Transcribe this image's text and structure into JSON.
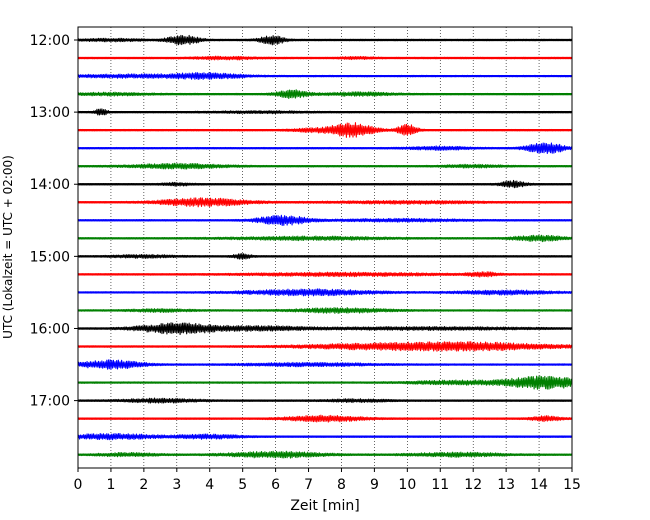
{
  "chart_data": {
    "type": "line",
    "title": "",
    "xlabel": "Zeit  [min]",
    "ylabel": "UTC (Lokalzeit = UTC + 02:00)",
    "xlim": [
      0,
      15
    ],
    "x_ticks": [
      "0",
      "1",
      "2",
      "3",
      "4",
      "5",
      "6",
      "7",
      "8",
      "9",
      "10",
      "11",
      "12",
      "13",
      "14",
      "15"
    ],
    "y_ticks": [
      "12:00",
      "13:00",
      "14:00",
      "15:00",
      "16:00",
      "17:00"
    ],
    "grid": {
      "x": true,
      "y": false,
      "style": "dotted"
    },
    "legend": "none",
    "trace_interval_minutes": 15,
    "trace_colors": [
      "#000000",
      "#ff0000",
      "#0000ff",
      "#008000"
    ],
    "series": [
      {
        "start": "12:00",
        "bursts": [
          [
            3.2,
            0.5,
            1.4
          ],
          [
            5.9,
            0.4,
            1.3
          ],
          [
            1.0,
            1.0,
            0.4
          ]
        ]
      },
      {
        "start": "12:15",
        "bursts": [
          [
            4.5,
            1.0,
            0.4
          ],
          [
            8.5,
            0.6,
            0.3
          ]
        ]
      },
      {
        "start": "12:30",
        "bursts": [
          [
            2.0,
            2.5,
            0.5
          ],
          [
            4.0,
            1.0,
            0.6
          ]
        ]
      },
      {
        "start": "12:45",
        "bursts": [
          [
            6.5,
            0.5,
            1.2
          ],
          [
            8.5,
            1.2,
            0.5
          ],
          [
            1.0,
            1.2,
            0.4
          ]
        ]
      },
      {
        "start": "13:00",
        "bursts": [
          [
            0.7,
            0.2,
            1.0
          ],
          [
            5.5,
            1.5,
            0.3
          ]
        ]
      },
      {
        "start": "13:15",
        "bursts": [
          [
            8.3,
            0.7,
            2.2
          ],
          [
            10.0,
            0.3,
            1.8
          ],
          [
            7.0,
            0.6,
            0.5
          ]
        ]
      },
      {
        "start": "13:30",
        "bursts": [
          [
            14.2,
            0.6,
            1.6
          ],
          [
            11.0,
            1.0,
            0.5
          ]
        ]
      },
      {
        "start": "13:45",
        "bursts": [
          [
            3.0,
            1.5,
            0.7
          ],
          [
            12.0,
            1.0,
            0.4
          ]
        ]
      },
      {
        "start": "14:00",
        "bursts": [
          [
            13.2,
            0.4,
            1.0
          ],
          [
            3.0,
            0.5,
            0.4
          ]
        ]
      },
      {
        "start": "14:15",
        "bursts": [
          [
            3.8,
            1.4,
            1.2
          ],
          [
            10.0,
            2.5,
            0.4
          ]
        ]
      },
      {
        "start": "14:30",
        "bursts": [
          [
            6.2,
            0.8,
            1.4
          ],
          [
            9.8,
            2.0,
            0.4
          ]
        ]
      },
      {
        "start": "14:45",
        "bursts": [
          [
            14.0,
            0.8,
            0.9
          ],
          [
            7.0,
            2.5,
            0.5
          ]
        ]
      },
      {
        "start": "15:00",
        "bursts": [
          [
            5.0,
            0.3,
            0.8
          ],
          [
            2.0,
            1.0,
            0.4
          ]
        ]
      },
      {
        "start": "15:15",
        "bursts": [
          [
            8.0,
            3.0,
            0.5
          ],
          [
            12.3,
            0.5,
            0.6
          ]
        ]
      },
      {
        "start": "15:30",
        "bursts": [
          [
            7.0,
            2.0,
            0.9
          ],
          [
            13.0,
            1.5,
            0.6
          ]
        ]
      },
      {
        "start": "15:45",
        "bursts": [
          [
            8.0,
            1.5,
            0.7
          ],
          [
            2.5,
            1.0,
            0.4
          ]
        ]
      },
      {
        "start": "16:00",
        "bursts": [
          [
            3.0,
            1.2,
            1.6
          ],
          [
            5.5,
            1.5,
            0.6
          ],
          [
            10.5,
            3.5,
            0.4
          ]
        ]
      },
      {
        "start": "16:15",
        "bursts": [
          [
            11.5,
            3.0,
            1.3
          ],
          [
            8.0,
            2.0,
            0.4
          ]
        ]
      },
      {
        "start": "16:30",
        "bursts": [
          [
            1.0,
            1.0,
            1.3
          ],
          [
            7.0,
            2.0,
            0.5
          ]
        ]
      },
      {
        "start": "16:45",
        "bursts": [
          [
            14.2,
            1.2,
            1.9
          ],
          [
            11.5,
            1.5,
            0.6
          ]
        ]
      },
      {
        "start": "17:00",
        "bursts": [
          [
            2.5,
            1.2,
            0.6
          ],
          [
            8.5,
            1.0,
            0.4
          ]
        ]
      },
      {
        "start": "17:15",
        "bursts": [
          [
            7.5,
            1.2,
            0.9
          ],
          [
            14.2,
            0.5,
            0.7
          ]
        ]
      },
      {
        "start": "17:30",
        "bursts": [
          [
            1.0,
            1.5,
            0.8
          ],
          [
            4.0,
            1.0,
            0.6
          ]
        ]
      },
      {
        "start": "17:45",
        "bursts": [
          [
            6.0,
            1.5,
            0.9
          ],
          [
            11.5,
            1.5,
            0.6
          ],
          [
            1.5,
            1.0,
            0.5
          ]
        ]
      }
    ]
  }
}
